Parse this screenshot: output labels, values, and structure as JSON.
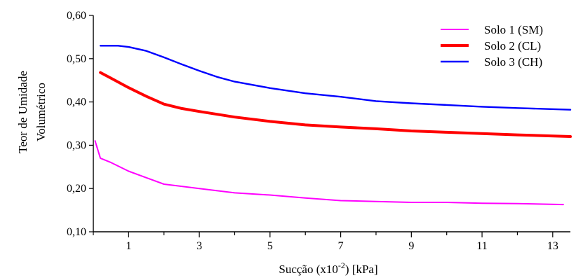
{
  "chart_data": {
    "type": "line",
    "title": "",
    "xlabel": {
      "main": "Sucção (x10",
      "exp": "-2",
      "tail": ")  [kPa]"
    },
    "ylabel": [
      "Teor de Umidade",
      "Volumétrico"
    ],
    "xlim": [
      0,
      13.5
    ],
    "ylim": [
      0.1,
      0.6
    ],
    "x_ticks": [
      1,
      3,
      5,
      7,
      9,
      11,
      13
    ],
    "x_minor_ticks": [
      0,
      2,
      4,
      6,
      8,
      10,
      12
    ],
    "y_ticks": [
      0.1,
      0.2,
      0.3,
      0.4,
      0.5,
      0.6
    ],
    "y_tick_labels": [
      "0,10",
      "0,20",
      "0,30",
      "0,40",
      "0,50",
      "0,60"
    ],
    "grid": false,
    "legend_position": "top-right",
    "series": [
      {
        "name": "Solo 1 (SM)",
        "color": "#ff00ff",
        "points": [
          [
            0.05,
            0.31
          ],
          [
            0.2,
            0.27
          ],
          [
            0.5,
            0.26
          ],
          [
            1,
            0.24
          ],
          [
            1.5,
            0.225
          ],
          [
            2,
            0.21
          ],
          [
            3,
            0.2
          ],
          [
            4,
            0.19
          ],
          [
            5,
            0.185
          ],
          [
            6,
            0.178
          ],
          [
            7,
            0.172
          ],
          [
            8,
            0.17
          ],
          [
            9,
            0.168
          ],
          [
            10,
            0.168
          ],
          [
            11,
            0.166
          ],
          [
            12,
            0.165
          ],
          [
            13.3,
            0.163
          ]
        ]
      },
      {
        "name": "Solo 2 (CL)",
        "color": "#ff0000",
        "points": [
          [
            0.2,
            0.468
          ],
          [
            0.5,
            0.455
          ],
          [
            1,
            0.433
          ],
          [
            1.5,
            0.413
          ],
          [
            2,
            0.395
          ],
          [
            2.5,
            0.385
          ],
          [
            3,
            0.378
          ],
          [
            4,
            0.365
          ],
          [
            5,
            0.355
          ],
          [
            6,
            0.347
          ],
          [
            7,
            0.342
          ],
          [
            8,
            0.338
          ],
          [
            9,
            0.333
          ],
          [
            10,
            0.33
          ],
          [
            11,
            0.327
          ],
          [
            12,
            0.324
          ],
          [
            13.5,
            0.32
          ]
        ]
      },
      {
        "name": "Solo 3 (CH)",
        "color": "#0000ff",
        "points": [
          [
            0.2,
            0.53
          ],
          [
            0.7,
            0.53
          ],
          [
            1,
            0.527
          ],
          [
            1.5,
            0.518
          ],
          [
            2,
            0.503
          ],
          [
            2.5,
            0.487
          ],
          [
            3,
            0.472
          ],
          [
            3.5,
            0.458
          ],
          [
            4,
            0.447
          ],
          [
            5,
            0.432
          ],
          [
            6,
            0.42
          ],
          [
            7,
            0.412
          ],
          [
            8,
            0.402
          ],
          [
            9,
            0.397
          ],
          [
            10,
            0.393
          ],
          [
            11,
            0.389
          ],
          [
            12,
            0.386
          ],
          [
            13.5,
            0.382
          ]
        ]
      }
    ]
  }
}
